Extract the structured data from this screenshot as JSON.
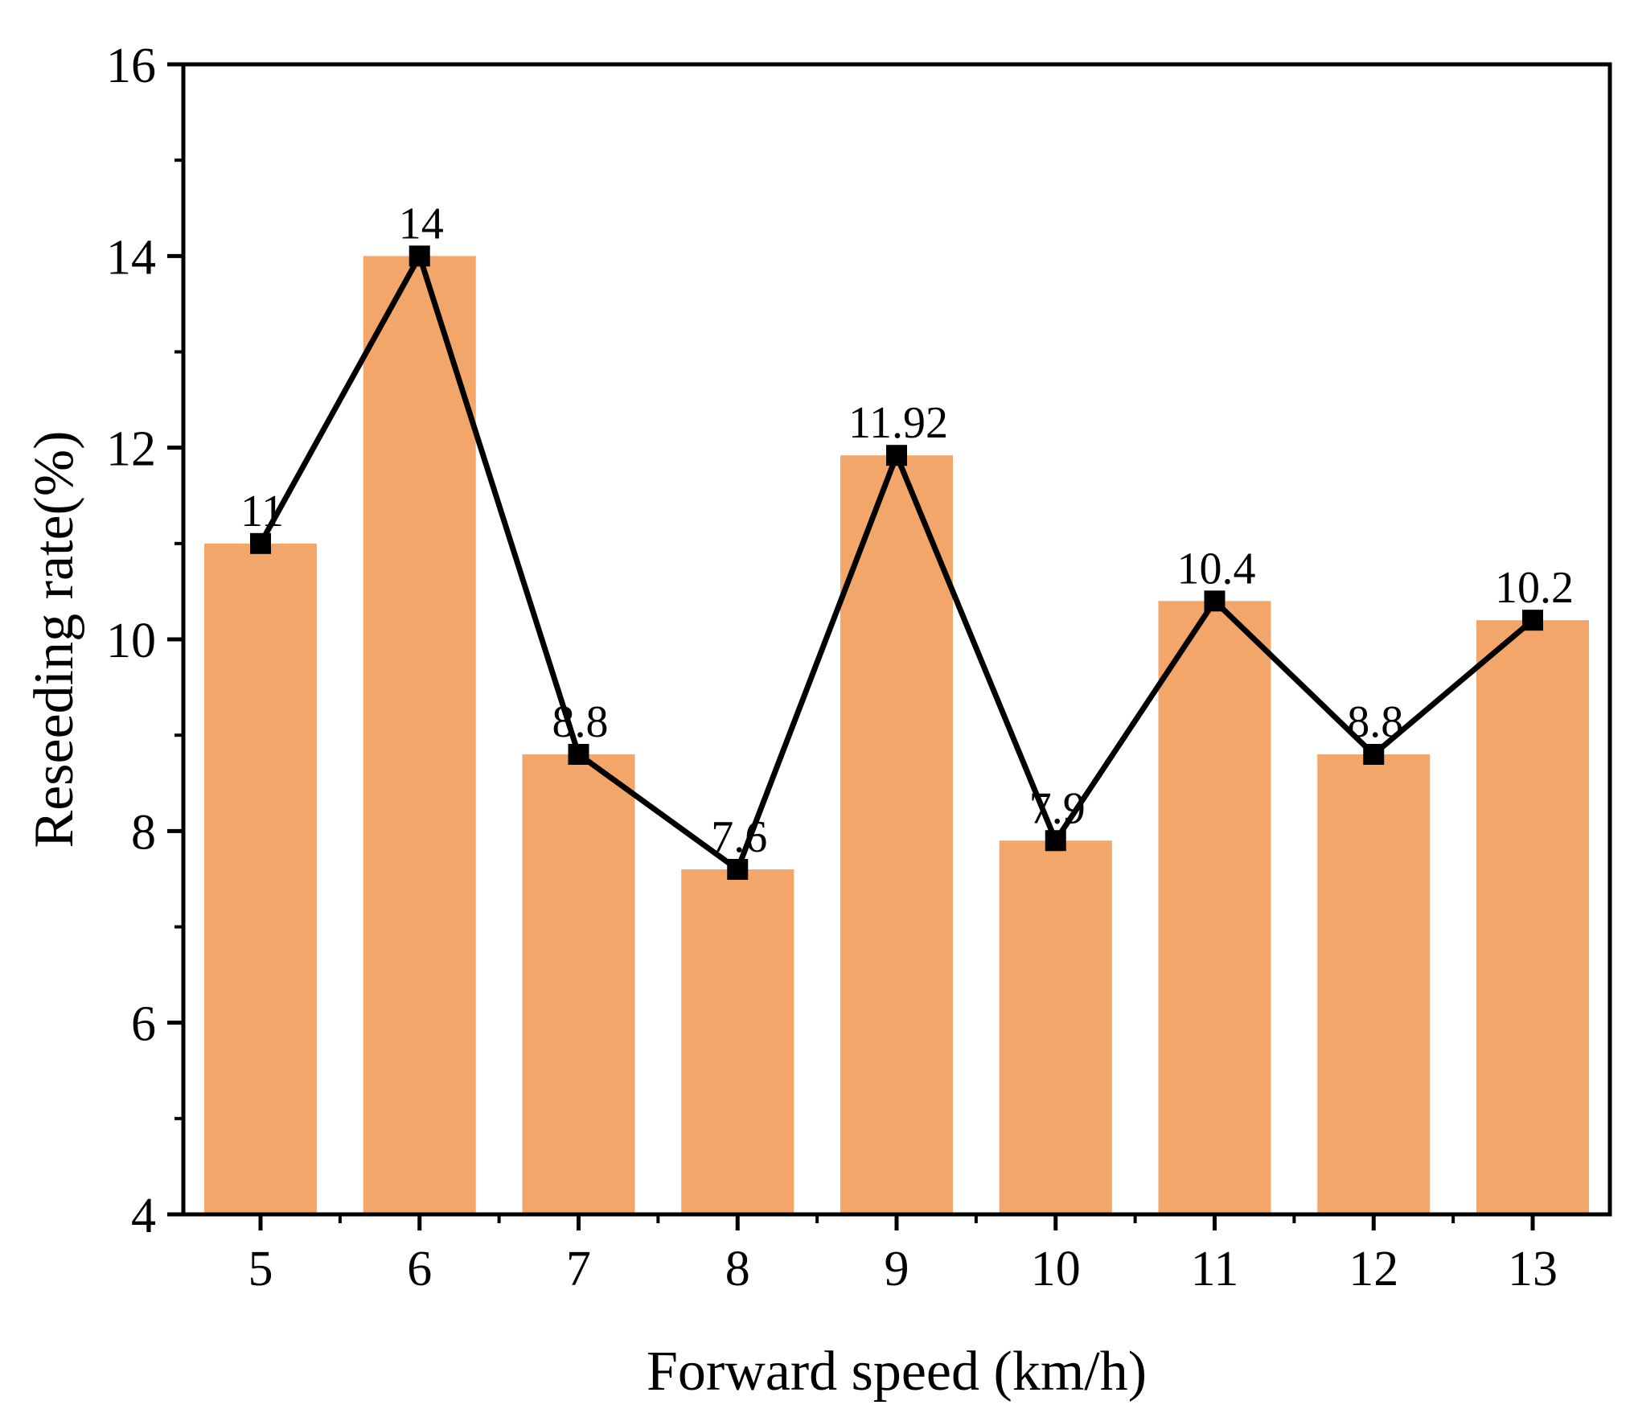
{
  "chart_data": {
    "type": "bar",
    "overlay": "line",
    "xlabel": "Forward speed (km/h)",
    "ylabel": "Reseeding rate(%)",
    "categories": [
      "5",
      "6",
      "7",
      "8",
      "9",
      "10",
      "11",
      "12",
      "13"
    ],
    "values": [
      11,
      14,
      8.8,
      7.6,
      11.92,
      7.9,
      10.4,
      8.8,
      10.2
    ],
    "data_labels": [
      "11",
      "14",
      "8.8",
      "7.6",
      "11.92",
      "7.9",
      "10.4",
      "8.8",
      "10.2"
    ],
    "ylim": [
      4,
      16
    ],
    "yticks": [
      4,
      6,
      8,
      10,
      12,
      14,
      16
    ],
    "yticks_minor": [
      5,
      7,
      9,
      11,
      13,
      15
    ],
    "grid": false,
    "legend": "none",
    "bar_color": "#F2A66A",
    "line_color": "#000000",
    "marker": "square"
  }
}
